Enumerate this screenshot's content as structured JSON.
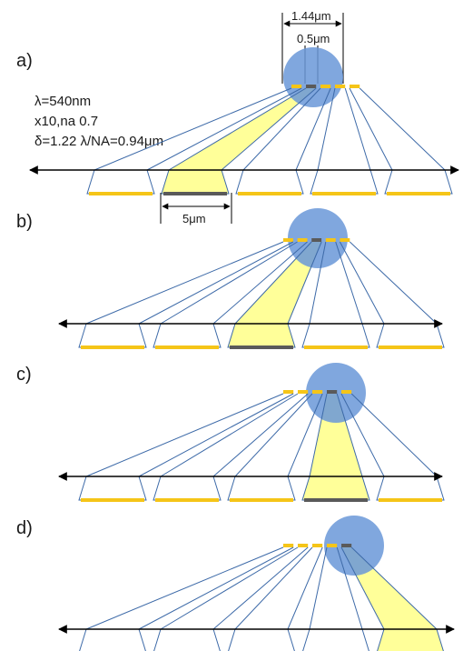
{
  "colors": {
    "line": "#3d6aa8",
    "highlight_fill": "#ffff99",
    "pixel": "#f5c518",
    "active_pixel": "#5a5a5a",
    "spot": "#6a98d8",
    "axis": "#000000"
  },
  "parameters": {
    "wavelength": "λ=540nm",
    "objective": "x10,na 0.7",
    "resolution": "δ=1.22 λ/NA=0.94μm"
  },
  "dimensions": {
    "pitch": "1.44μm",
    "pixel_width": "0.5μm",
    "sensor_width": "5μm"
  },
  "panels": [
    {
      "label": "a)",
      "active_pixel": 2
    },
    {
      "label": "b)",
      "active_pixel": 3
    },
    {
      "label": "c)",
      "active_pixel": 4
    },
    {
      "label": "d)",
      "active_pixel": 5
    }
  ]
}
